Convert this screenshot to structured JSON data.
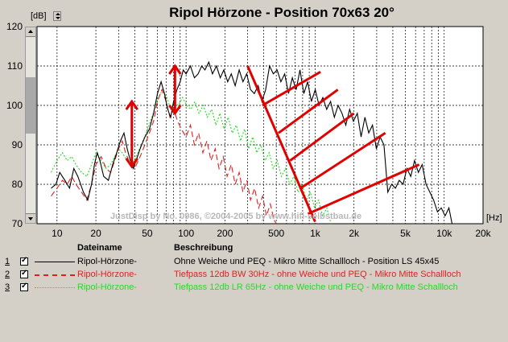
{
  "chart_data": {
    "type": "line",
    "title": "Ripol Hörzone - Position 70x63 20°",
    "ylabel": "[dB]",
    "xlabel": "[Hz]",
    "xscale": "log",
    "xlim": [
      7,
      20000
    ],
    "ylim": [
      70,
      120
    ],
    "yticks": [
      70,
      80,
      90,
      100,
      110,
      120
    ],
    "xticks": [
      {
        "v": 10,
        "label": "10"
      },
      {
        "v": 20,
        "label": "20"
      },
      {
        "v": 50,
        "label": "50"
      },
      {
        "v": 100,
        "label": "100"
      },
      {
        "v": 200,
        "label": "200"
      },
      {
        "v": 500,
        "label": "500"
      },
      {
        "v": 1000,
        "label": "1k"
      },
      {
        "v": 2000,
        "label": "2k"
      },
      {
        "v": 5000,
        "label": "5k"
      },
      {
        "v": 10000,
        "label": "10k"
      },
      {
        "v": 20000,
        "label": "20k"
      }
    ],
    "grid": true,
    "watermark": "JustDisp by No. 0986, ©2004-2005 by www.hifi-selbstbau.de",
    "series": [
      {
        "name": "Ripol-Hörzone-",
        "description": "Ohne Weiche und PEQ - Mikro Mitte Schallloch - Position LS 45x45",
        "color": "#000000",
        "dash": "solid",
        "number": "1",
        "points": [
          [
            9,
            79
          ],
          [
            9.8,
            80
          ],
          [
            10.5,
            83
          ],
          [
            11.5,
            81
          ],
          [
            12.5,
            79
          ],
          [
            13.5,
            84
          ],
          [
            14.5,
            82
          ],
          [
            16,
            78
          ],
          [
            17.3,
            76
          ],
          [
            18.5,
            80
          ],
          [
            19.5,
            85
          ],
          [
            20.5,
            88
          ],
          [
            21.5,
            86
          ],
          [
            23,
            82
          ],
          [
            25,
            81
          ],
          [
            27,
            85
          ],
          [
            29,
            88
          ],
          [
            31,
            91
          ],
          [
            33,
            93
          ],
          [
            35,
            89
          ],
          [
            37,
            86
          ],
          [
            39,
            84
          ],
          [
            41,
            86
          ],
          [
            44,
            89
          ],
          [
            48,
            92
          ],
          [
            52,
            94
          ],
          [
            56,
            98
          ],
          [
            60,
            103
          ],
          [
            64,
            106
          ],
          [
            68,
            103
          ],
          [
            72,
            99
          ],
          [
            76,
            97
          ],
          [
            80,
            101
          ],
          [
            85,
            104
          ],
          [
            90,
            106
          ],
          [
            95,
            109
          ],
          [
            100,
            108
          ],
          [
            108,
            110
          ],
          [
            116,
            107
          ],
          [
            124,
            108
          ],
          [
            132,
            110
          ],
          [
            140,
            109
          ],
          [
            150,
            111
          ],
          [
            160,
            108
          ],
          [
            172,
            110
          ],
          [
            184,
            107
          ],
          [
            196,
            109
          ],
          [
            210,
            106
          ],
          [
            224,
            108
          ],
          [
            240,
            105
          ],
          [
            258,
            109
          ],
          [
            276,
            106
          ],
          [
            295,
            108
          ],
          [
            316,
            104
          ],
          [
            338,
            103
          ],
          [
            362,
            105
          ],
          [
            387,
            101
          ],
          [
            414,
            104
          ],
          [
            443,
            110
          ],
          [
            474,
            108
          ],
          [
            507,
            109
          ],
          [
            543,
            106
          ],
          [
            581,
            108
          ],
          [
            622,
            103
          ],
          [
            666,
            107
          ],
          [
            713,
            104
          ],
          [
            763,
            109
          ],
          [
            817,
            103
          ],
          [
            874,
            106
          ],
          [
            936,
            101
          ],
          [
            1002,
            104
          ],
          [
            1072,
            100
          ],
          [
            1148,
            102
          ],
          [
            1229,
            99
          ],
          [
            1316,
            101
          ],
          [
            1409,
            97
          ],
          [
            1508,
            100
          ],
          [
            1614,
            98
          ],
          [
            1728,
            95
          ],
          [
            1850,
            99
          ],
          [
            1980,
            96
          ],
          [
            2120,
            98
          ],
          [
            2270,
            92
          ],
          [
            2430,
            97
          ],
          [
            2601,
            93
          ],
          [
            2784,
            95
          ],
          [
            2980,
            89
          ],
          [
            3190,
            92
          ],
          [
            3415,
            90
          ],
          [
            3656,
            78
          ],
          [
            3913,
            80
          ],
          [
            4190,
            79
          ],
          [
            4486,
            81
          ],
          [
            4802,
            80
          ],
          [
            5141,
            84
          ],
          [
            5504,
            82
          ],
          [
            5892,
            86
          ],
          [
            6308,
            83
          ],
          [
            6753,
            85
          ],
          [
            7229,
            80
          ],
          [
            7739,
            78
          ],
          [
            8285,
            76
          ],
          [
            8870,
            73
          ],
          [
            9495,
            74
          ],
          [
            10165,
            72
          ],
          [
            10882,
            74
          ],
          [
            11500,
            70
          ]
        ]
      },
      {
        "name": "Ripol-Hörzone-",
        "description": "Tiefpass 12db BW 30Hz - ohne Weiche und PEQ - Mikro Mitte Schallloch",
        "color": "#e02020",
        "dash": "dashed",
        "number": "2",
        "points": [
          [
            9,
            77
          ],
          [
            10,
            79
          ],
          [
            11,
            81
          ],
          [
            12,
            80
          ],
          [
            13,
            82
          ],
          [
            14,
            80
          ],
          [
            15.5,
            78
          ],
          [
            17,
            76
          ],
          [
            18.5,
            80
          ],
          [
            20,
            85
          ],
          [
            22,
            87
          ],
          [
            24,
            84
          ],
          [
            26,
            83
          ],
          [
            28,
            86
          ],
          [
            30,
            89
          ],
          [
            32,
            91
          ],
          [
            34,
            88
          ],
          [
            37,
            85
          ],
          [
            40,
            84
          ],
          [
            44,
            87
          ],
          [
            48,
            90
          ],
          [
            52,
            93
          ],
          [
            56,
            96
          ],
          [
            60,
            101
          ],
          [
            65,
            104
          ],
          [
            70,
            101
          ],
          [
            75,
            97
          ],
          [
            80,
            99
          ],
          [
            86,
            96
          ],
          [
            92,
            94
          ],
          [
            100,
            92
          ],
          [
            108,
            95
          ],
          [
            116,
            90
          ],
          [
            125,
            93
          ],
          [
            135,
            88
          ],
          [
            145,
            91
          ],
          [
            156,
            86
          ],
          [
            168,
            89
          ],
          [
            180,
            84
          ],
          [
            194,
            87
          ],
          [
            208,
            82
          ],
          [
            224,
            85
          ],
          [
            240,
            80
          ],
          [
            258,
            83
          ],
          [
            276,
            78
          ],
          [
            296,
            81
          ],
          [
            316,
            76
          ],
          [
            340,
            79
          ],
          [
            365,
            74
          ],
          [
            392,
            77
          ],
          [
            420,
            72
          ],
          [
            450,
            75
          ],
          [
            480,
            71
          ],
          [
            500,
            70
          ]
        ]
      },
      {
        "name": "Ripol-Hörzone-",
        "description": "Tiefpass 12db LR 65Hz - ohne Weiche und PEQ - Mikro Mitte Schallloch",
        "color": "#22dd22",
        "dash": "dotted",
        "number": "3",
        "points": [
          [
            9,
            83
          ],
          [
            10,
            86
          ],
          [
            11,
            88
          ],
          [
            12,
            86
          ],
          [
            13,
            87
          ],
          [
            14,
            85
          ],
          [
            15.5,
            83
          ],
          [
            17,
            82
          ],
          [
            18.5,
            85
          ],
          [
            20,
            88
          ],
          [
            22,
            86
          ],
          [
            24,
            84
          ],
          [
            26,
            85
          ],
          [
            28,
            87
          ],
          [
            30,
            89
          ],
          [
            32,
            88
          ],
          [
            35,
            86
          ],
          [
            38,
            85
          ],
          [
            41,
            87
          ],
          [
            45,
            90
          ],
          [
            49,
            93
          ],
          [
            53,
            96
          ],
          [
            57,
            99
          ],
          [
            61,
            102
          ],
          [
            66,
            104
          ],
          [
            71,
            102
          ],
          [
            76,
            99
          ],
          [
            81,
            101
          ],
          [
            87,
            100
          ],
          [
            94,
            102
          ],
          [
            101,
            100
          ],
          [
            109,
            99
          ],
          [
            117,
            101
          ],
          [
            126,
            98
          ],
          [
            136,
            100
          ],
          [
            146,
            97
          ],
          [
            158,
            99
          ],
          [
            170,
            95
          ],
          [
            183,
            98
          ],
          [
            197,
            94
          ],
          [
            212,
            97
          ],
          [
            228,
            93
          ],
          [
            245,
            95
          ],
          [
            264,
            91
          ],
          [
            284,
            94
          ],
          [
            305,
            89
          ],
          [
            328,
            92
          ],
          [
            353,
            88
          ],
          [
            380,
            90
          ],
          [
            409,
            86
          ],
          [
            440,
            88
          ],
          [
            473,
            84
          ],
          [
            509,
            86
          ],
          [
            548,
            82
          ],
          [
            590,
            84
          ],
          [
            635,
            80
          ],
          [
            684,
            82
          ],
          [
            736,
            78
          ],
          [
            792,
            80
          ],
          [
            853,
            76
          ],
          [
            918,
            78
          ],
          [
            988,
            74
          ],
          [
            1063,
            76
          ],
          [
            1144,
            72
          ],
          [
            1232,
            74
          ],
          [
            1326,
            70
          ]
        ]
      }
    ],
    "annotations": [
      {
        "type": "double-arrow",
        "x": 38,
        "y1": 84.5,
        "y2": 101,
        "color": "#e00000"
      },
      {
        "type": "double-arrow",
        "x": 82,
        "y1": 98,
        "y2": 110,
        "color": "#e00000"
      },
      {
        "type": "line",
        "x1": 300,
        "y1": 110,
        "x2": 1000,
        "y2": 70.5,
        "color": "#e00000"
      },
      {
        "type": "line",
        "x1": 390,
        "y1": 100,
        "x2": 1100,
        "y2": 108.5,
        "color": "#e00000"
      },
      {
        "type": "line",
        "x1": 520,
        "y1": 93,
        "x2": 1500,
        "y2": 104,
        "color": "#e00000"
      },
      {
        "type": "line",
        "x1": 640,
        "y1": 86,
        "x2": 2000,
        "y2": 98,
        "color": "#e00000"
      },
      {
        "type": "line",
        "x1": 770,
        "y1": 79,
        "x2": 3500,
        "y2": 93,
        "color": "#e00000"
      },
      {
        "type": "line",
        "x1": 880,
        "y1": 72.5,
        "x2": 6400,
        "y2": 85,
        "color": "#e00000"
      }
    ]
  },
  "legend": {
    "header_name": "Dateiname",
    "header_desc": "Beschreibung"
  }
}
